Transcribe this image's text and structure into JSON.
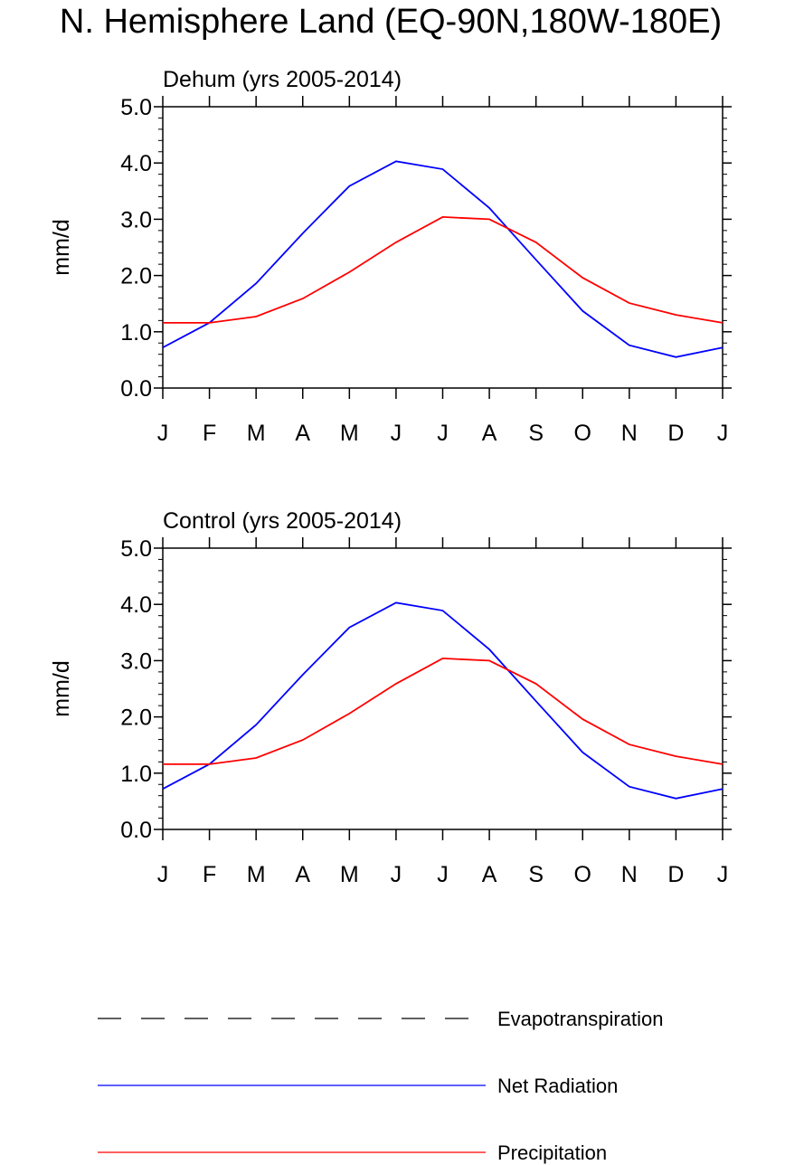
{
  "title": "N. Hemisphere Land (EQ-90N,180W-180E)",
  "legend": [
    {
      "name": "Evapotranspiration",
      "color": "#000000",
      "dash": true
    },
    {
      "name": "Net Radiation",
      "color": "#0000ff",
      "dash": false
    },
    {
      "name": "Precipitation",
      "color": "#ff0000",
      "dash": false
    }
  ],
  "chart_data": [
    {
      "type": "line",
      "title": "Dehum (yrs 2005-2014)",
      "y_label": "mm/d",
      "categories": [
        "J",
        "F",
        "M",
        "A",
        "M",
        "J",
        "J",
        "A",
        "S",
        "O",
        "N",
        "D",
        "J"
      ],
      "ylim": [
        0,
        5
      ],
      "yticks": [
        {
          "value": 0,
          "label": "0.0"
        },
        {
          "value": 1,
          "label": "1.0"
        },
        {
          "value": 2,
          "label": "2.0"
        },
        {
          "value": 3,
          "label": "3.0"
        },
        {
          "value": 4,
          "label": "4.0"
        },
        {
          "value": 5,
          "label": "5.0"
        }
      ],
      "series": [
        {
          "color": "#0000ff",
          "values": [
            0.72,
            1.16,
            1.86,
            2.75,
            3.59,
            4.03,
            3.89,
            3.2,
            2.28,
            1.37,
            0.76,
            0.55,
            0.72
          ]
        },
        {
          "color": "#ff0000",
          "values": [
            1.16,
            1.16,
            1.27,
            1.59,
            2.06,
            2.59,
            3.04,
            3.0,
            2.59,
            1.96,
            1.51,
            1.3,
            1.16
          ]
        }
      ]
    },
    {
      "type": "line",
      "title": "Control (yrs 2005-2014)",
      "y_label": "mm/d",
      "categories": [
        "J",
        "F",
        "M",
        "A",
        "M",
        "J",
        "J",
        "A",
        "S",
        "O",
        "N",
        "D",
        "J"
      ],
      "ylim": [
        0,
        5
      ],
      "yticks": [
        {
          "value": 0,
          "label": "0.0"
        },
        {
          "value": 1,
          "label": "1.0"
        },
        {
          "value": 2,
          "label": "2.0"
        },
        {
          "value": 3,
          "label": "3.0"
        },
        {
          "value": 4,
          "label": "4.0"
        },
        {
          "value": 5,
          "label": "5.0"
        }
      ],
      "series": [
        {
          "color": "#0000ff",
          "values": [
            0.72,
            1.16,
            1.86,
            2.75,
            3.59,
            4.03,
            3.89,
            3.2,
            2.28,
            1.37,
            0.76,
            0.55,
            0.72
          ]
        },
        {
          "color": "#ff0000",
          "values": [
            1.16,
            1.16,
            1.27,
            1.59,
            2.06,
            2.59,
            3.04,
            3.0,
            2.59,
            1.96,
            1.51,
            1.3,
            1.16
          ]
        }
      ]
    }
  ]
}
